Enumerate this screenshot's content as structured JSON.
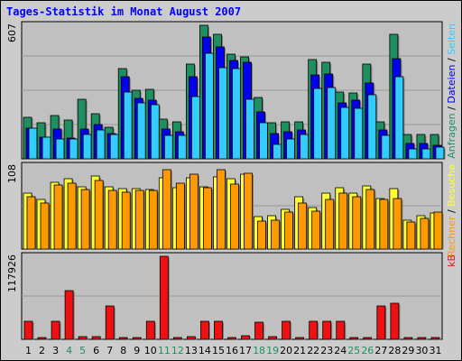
{
  "title": "Tages-Statistik im Monat August 2007",
  "colors": {
    "anfragen": "#1f8f5f",
    "dateien": "#0000ee",
    "seiten": "#33ccff",
    "besuche": "#ffff33",
    "rechner": "#ff9900",
    "kb": "#ee1111",
    "weekend_label": "#1f8f5f",
    "weekday_label": "#000000",
    "panel_bg": "#c0c0c0",
    "frame_bg": "#cccccc"
  },
  "chart_data": [
    {
      "type": "bar",
      "panel": "top",
      "ymax_label": "607",
      "ylim": [
        0,
        607
      ],
      "legend": [
        {
          "text": "Anfragen",
          "color": "#1f8f5f"
        },
        {
          "text": " / ",
          "color": "#000000"
        },
        {
          "text": "Dateien",
          "color": "#0000ee"
        },
        {
          "text": " / ",
          "color": "#000000"
        },
        {
          "text": "Seiten",
          "color": "#33ccff"
        }
      ],
      "categories": [
        "1",
        "2",
        "3",
        "4",
        "5",
        "6",
        "7",
        "8",
        "9",
        "10",
        "11",
        "12",
        "13",
        "14",
        "15",
        "16",
        "17",
        "18",
        "19",
        "20",
        "21",
        "22",
        "23",
        "24",
        "25",
        "26",
        "27",
        "28",
        "29",
        "30",
        "31"
      ],
      "series": [
        {
          "name": "Anfragen",
          "values": [
            190,
            165,
            195,
            175,
            270,
            205,
            145,
            410,
            310,
            315,
            180,
            170,
            430,
            607,
            565,
            475,
            465,
            280,
            165,
            170,
            170,
            450,
            440,
            305,
            300,
            430,
            170,
            565,
            110,
            110,
            110
          ]
        },
        {
          "name": "Dateien",
          "values": [
            140,
            100,
            135,
            95,
            135,
            155,
            115,
            375,
            275,
            265,
            135,
            125,
            375,
            555,
            510,
            445,
            440,
            215,
            115,
            125,
            130,
            380,
            385,
            255,
            265,
            345,
            130,
            455,
            70,
            70,
            60
          ]
        },
        {
          "name": "Seiten",
          "values": [
            140,
            100,
            90,
            90,
            110,
            130,
            110,
            305,
            255,
            245,
            105,
            105,
            285,
            480,
            415,
            410,
            270,
            165,
            65,
            90,
            110,
            320,
            325,
            235,
            230,
            290,
            105,
            375,
            45,
            45,
            55
          ]
        }
      ]
    },
    {
      "type": "bar",
      "panel": "middle",
      "ymax_label": "108",
      "ylim": [
        0,
        108
      ],
      "legend": [
        {
          "text": "Rechner",
          "color": "#ff9900"
        },
        {
          "text": " / ",
          "color": "#000000"
        },
        {
          "text": "Besuche",
          "color": "#ffff33"
        }
      ],
      "categories": [
        "1",
        "2",
        "3",
        "4",
        "5",
        "6",
        "7",
        "8",
        "9",
        "10",
        "11",
        "12",
        "13",
        "14",
        "15",
        "16",
        "17",
        "18",
        "19",
        "20",
        "21",
        "22",
        "23",
        "24",
        "25",
        "26",
        "27",
        "28",
        "29",
        "30",
        "31"
      ],
      "series": [
        {
          "name": "Besuche",
          "values": [
            73,
            65,
            87,
            91,
            81,
            95,
            81,
            79,
            79,
            77,
            93,
            80,
            93,
            81,
            94,
            91,
            98,
            42,
            43,
            52,
            68,
            54,
            73,
            80,
            73,
            82,
            66,
            79,
            38,
            44,
            47
          ]
        },
        {
          "name": "Rechner",
          "values": [
            68,
            60,
            83,
            86,
            78,
            89,
            76,
            74,
            76,
            76,
            103,
            86,
            98,
            80,
            103,
            84,
            99,
            36,
            38,
            48,
            60,
            49,
            65,
            73,
            68,
            77,
            64,
            66,
            35,
            40,
            48
          ]
        }
      ]
    },
    {
      "type": "bar",
      "panel": "bottom",
      "ymax_label": "117926",
      "ylim": [
        0,
        117926
      ],
      "legend": [
        {
          "text": "kB",
          "color": "#ee1111"
        }
      ],
      "categories": [
        "1",
        "2",
        "3",
        "4",
        "5",
        "6",
        "7",
        "8",
        "9",
        "10",
        "11",
        "12",
        "13",
        "14",
        "15",
        "16",
        "17",
        "18",
        "19",
        "20",
        "21",
        "22",
        "23",
        "24",
        "25",
        "26",
        "27",
        "28",
        "29",
        "30",
        "31"
      ],
      "series": [
        {
          "name": "kB",
          "values": [
            25000,
            2000,
            26000,
            69000,
            4000,
            4000,
            47000,
            3000,
            2000,
            26000,
            117926,
            3000,
            4000,
            26000,
            26000,
            3000,
            5000,
            24000,
            4000,
            26000,
            3000,
            25000,
            25000,
            25000,
            3000,
            3000,
            47000,
            51000,
            3000,
            2000,
            2000
          ]
        }
      ]
    }
  ],
  "weekend_days": [
    "4",
    "5",
    "11",
    "12",
    "18",
    "19",
    "25",
    "26"
  ]
}
